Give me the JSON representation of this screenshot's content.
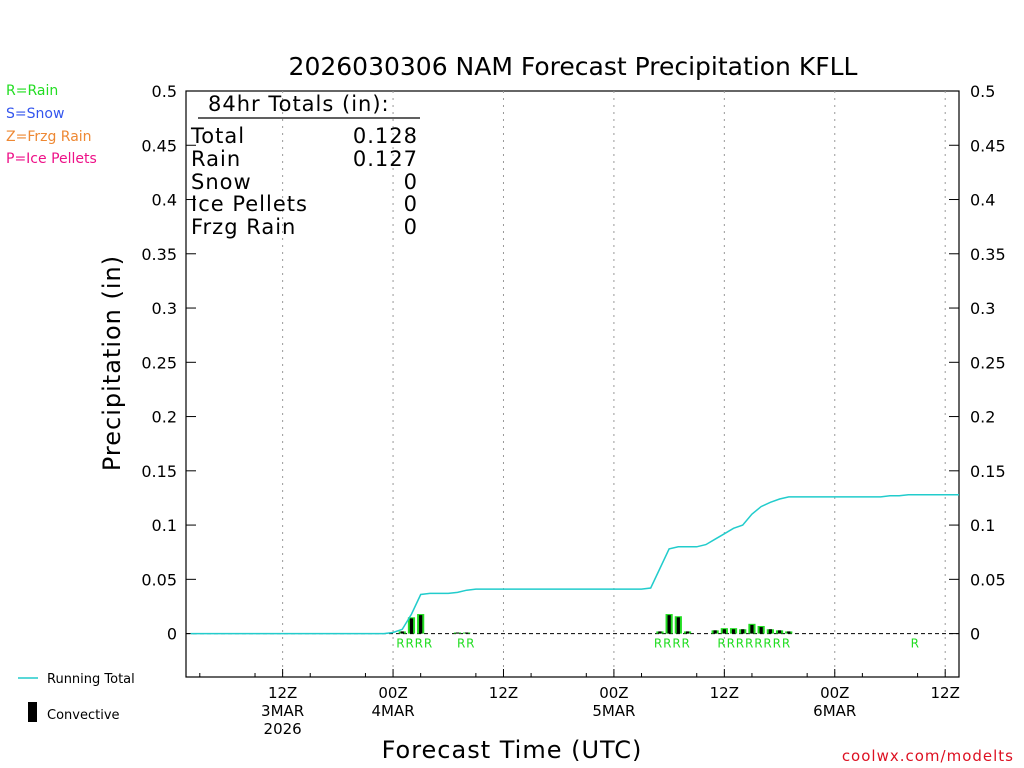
{
  "chart_data": {
    "type": "bar",
    "title": "2026030306 NAM Forecast Precipitation KFLL",
    "xlabel": "Forecast Time (UTC)",
    "ylabel": "Precipitation (in)",
    "ylim": [
      -0.04,
      0.5
    ],
    "yticks": [
      "0.5",
      "0.45",
      "0.4",
      "0.35",
      "0.3",
      "0.25",
      "0.2",
      "0.15",
      "0.1",
      "0.05",
      "0"
    ],
    "ytick_values": [
      0.5,
      0.45,
      0.4,
      0.35,
      0.3,
      0.25,
      0.2,
      0.15,
      0.1,
      0.05,
      0
    ],
    "x_range_hours": [
      -4.5,
      79.5
    ],
    "x_ticks": [
      {
        "hour": 6,
        "line1": "12Z",
        "line2": "3MAR",
        "line3": "2026"
      },
      {
        "hour": 18,
        "line1": "00Z",
        "line2": "4MAR",
        "line3": ""
      },
      {
        "hour": 30,
        "line1": "12Z",
        "line2": "",
        "line3": ""
      },
      {
        "hour": 42,
        "line1": "00Z",
        "line2": "5MAR",
        "line3": ""
      },
      {
        "hour": 54,
        "line1": "12Z",
        "line2": "",
        "line3": ""
      },
      {
        "hour": 66,
        "line1": "00Z",
        "line2": "6MAR",
        "line3": ""
      },
      {
        "hour": 78,
        "line1": "12Z",
        "line2": "",
        "line3": ""
      }
    ],
    "precip_type_legend": [
      {
        "label": "R=Rain",
        "color": "#22dd22"
      },
      {
        "label": "S=Snow",
        "color": "#3355ee"
      },
      {
        "label": "Z=Frzg Rain",
        "color": "#ee8833"
      },
      {
        "label": "P=Ice Pellets",
        "color": "#ee1188"
      }
    ],
    "series_legend": {
      "running_total_label": "Running Total",
      "running_total_color": "#22cccc",
      "convective_label": "Convective"
    },
    "totals": {
      "heading": "84hr Totals (in):",
      "rows": [
        {
          "label": "Total",
          "value": "0.128"
        },
        {
          "label": "Rain",
          "value": "0.127"
        },
        {
          "label": "Snow",
          "value": "0"
        },
        {
          "label": "Ice Pellets",
          "value": "0"
        },
        {
          "label": "Frzg Rain",
          "value": "0"
        }
      ]
    },
    "hourly_bars": [
      {
        "hour": 19,
        "total": 0.002,
        "conv": 0.002
      },
      {
        "hour": 20,
        "total": 0.015,
        "conv": 0.014
      },
      {
        "hour": 21,
        "total": 0.018,
        "conv": 0.017
      },
      {
        "hour": 25,
        "total": 0.001,
        "conv": 0.001
      },
      {
        "hour": 26,
        "total": 0.001,
        "conv": 0.001
      },
      {
        "hour": 47,
        "total": 0.002,
        "conv": 0.002
      },
      {
        "hour": 48,
        "total": 0.018,
        "conv": 0.017
      },
      {
        "hour": 49,
        "total": 0.016,
        "conv": 0.015
      },
      {
        "hour": 50,
        "total": 0.002,
        "conv": 0.002
      },
      {
        "hour": 53,
        "total": 0.003,
        "conv": 0.003
      },
      {
        "hour": 54,
        "total": 0.005,
        "conv": 0.004
      },
      {
        "hour": 55,
        "total": 0.005,
        "conv": 0.004
      },
      {
        "hour": 56,
        "total": 0.004,
        "conv": 0.004
      },
      {
        "hour": 57,
        "total": 0.009,
        "conv": 0.008
      },
      {
        "hour": 58,
        "total": 0.007,
        "conv": 0.006
      },
      {
        "hour": 59,
        "total": 0.004,
        "conv": 0.004
      },
      {
        "hour": 60,
        "total": 0.003,
        "conv": 0.003
      },
      {
        "hour": 61,
        "total": 0.002,
        "conv": 0.002
      }
    ],
    "running_total": {
      "hours": [
        -4,
        17,
        18,
        19,
        20,
        21,
        22,
        24,
        25,
        26,
        27,
        45,
        46,
        47,
        48,
        49,
        50,
        51,
        52,
        53,
        54,
        55,
        56,
        57,
        58,
        59,
        60,
        61,
        62,
        63,
        70,
        71,
        72,
        73,
        74,
        79.5
      ],
      "values": [
        0,
        0,
        0.001,
        0.004,
        0.018,
        0.036,
        0.037,
        0.037,
        0.038,
        0.04,
        0.041,
        0.041,
        0.042,
        0.06,
        0.078,
        0.08,
        0.08,
        0.08,
        0.082,
        0.087,
        0.092,
        0.097,
        0.1,
        0.11,
        0.117,
        0.121,
        0.124,
        0.126,
        0.126,
        0.126,
        0.126,
        0.126,
        0.127,
        0.127,
        0.128,
        0.128
      ]
    },
    "ptype_labels": [
      {
        "hour": 18.8,
        "text": "R"
      },
      {
        "hour": 19.8,
        "text": "R"
      },
      {
        "hour": 20.8,
        "text": "R"
      },
      {
        "hour": 21.8,
        "text": "R"
      },
      {
        "hour": 25.4,
        "text": "R"
      },
      {
        "hour": 26.4,
        "text": "R"
      },
      {
        "hour": 46.8,
        "text": "R"
      },
      {
        "hour": 47.8,
        "text": "R"
      },
      {
        "hour": 48.8,
        "text": "R"
      },
      {
        "hour": 49.8,
        "text": "R"
      },
      {
        "hour": 53.7,
        "text": "R"
      },
      {
        "hour": 54.7,
        "text": "R"
      },
      {
        "hour": 55.7,
        "text": "R"
      },
      {
        "hour": 56.7,
        "text": "R"
      },
      {
        "hour": 57.7,
        "text": "R"
      },
      {
        "hour": 58.7,
        "text": "R"
      },
      {
        "hour": 59.7,
        "text": "R"
      },
      {
        "hour": 60.7,
        "text": "R"
      },
      {
        "hour": 74.7,
        "text": "R"
      }
    ],
    "credit": "coolwx.com/modelts"
  }
}
